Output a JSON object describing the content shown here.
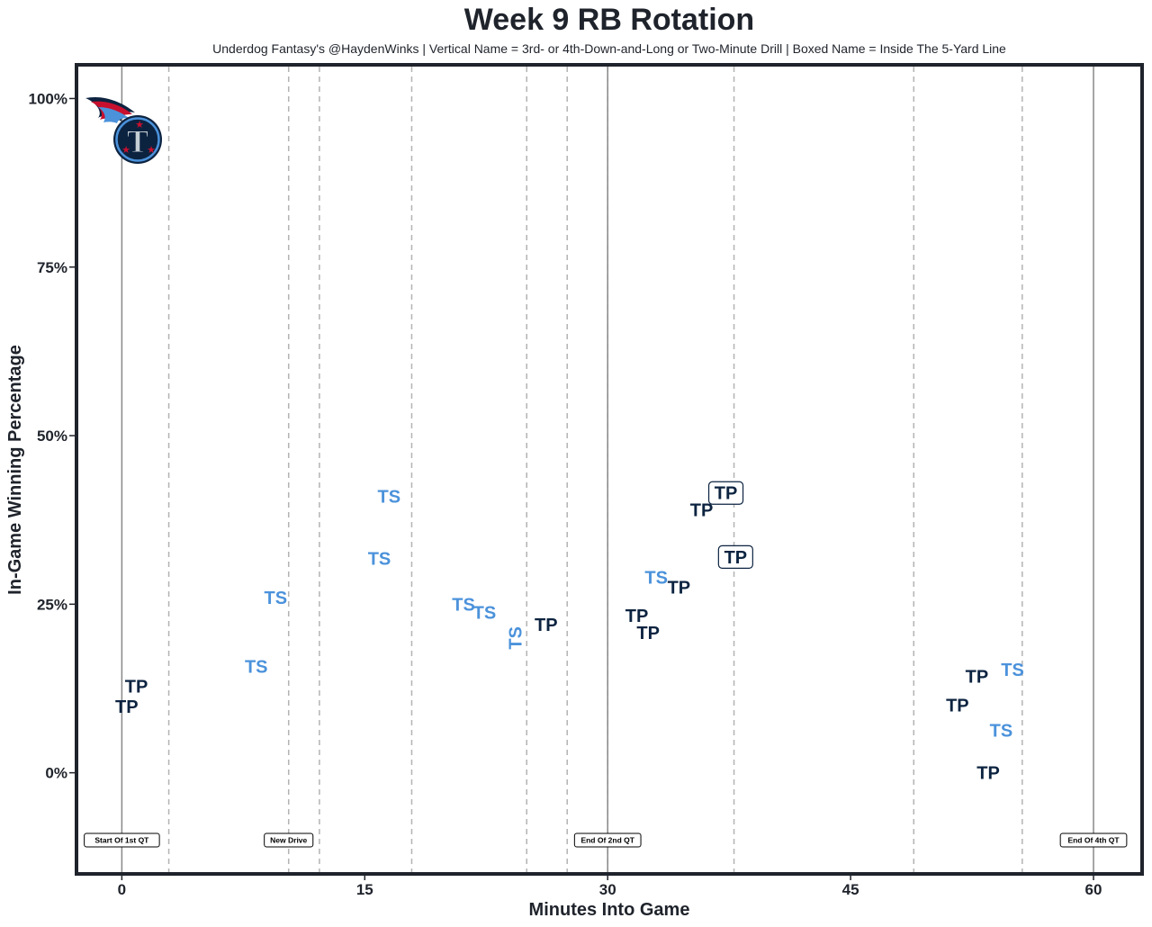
{
  "chart_data": {
    "type": "scatter",
    "title": "Week 9 RB Rotation",
    "subtitle": "Underdog Fantasy's @HaydenWinks | Vertical Name = 3rd- or 4th-Down-and-Long or Two-Minute Drill | Boxed Name = Inside The 5-Yard Line",
    "xlabel": "Minutes Into Game",
    "ylabel": "In-Game Winning Percentage",
    "xlim": [
      -2.8,
      63
    ],
    "ylim": [
      -15,
      105
    ],
    "x_ticks": [
      0,
      15,
      30,
      45,
      60
    ],
    "y_ticks": [
      {
        "value": 0,
        "label": "0%"
      },
      {
        "value": 25,
        "label": "25%"
      },
      {
        "value": 50,
        "label": "50%"
      },
      {
        "value": 75,
        "label": "75%"
      },
      {
        "value": 100,
        "label": "100%"
      }
    ],
    "grid": false,
    "solid_lines": [
      0,
      30,
      60
    ],
    "dashed_lines": [
      2.9,
      10.3,
      12.2,
      17.9,
      25.0,
      27.5,
      30.0,
      37.8,
      48.9,
      55.6
    ],
    "annotations": [
      {
        "x": 0,
        "label": "Start Of 1st QT"
      },
      {
        "x": 10.3,
        "label": "New Drive"
      },
      {
        "x": 30,
        "label": "End Of 2nd QT"
      },
      {
        "x": 60,
        "label": "End Of 4th QT"
      }
    ],
    "annotation_y": -10,
    "colors": {
      "TP": "#0c2340",
      "TS": "#4b92db",
      "frame": "#1f232b",
      "solid_line": "#888888",
      "dashed_line": "#b3b3b3"
    },
    "points": [
      {
        "label": "TP",
        "x": 0.3,
        "y": 9.8,
        "vertical": false,
        "boxed": false
      },
      {
        "label": "TP",
        "x": 0.9,
        "y": 12.8,
        "vertical": false,
        "boxed": false
      },
      {
        "label": "TS",
        "x": 8.3,
        "y": 15.8,
        "vertical": false,
        "boxed": false
      },
      {
        "label": "TS",
        "x": 9.5,
        "y": 26.0,
        "vertical": false,
        "boxed": false
      },
      {
        "label": "TS",
        "x": 15.9,
        "y": 31.8,
        "vertical": false,
        "boxed": false
      },
      {
        "label": "TS",
        "x": 16.5,
        "y": 41.0,
        "vertical": false,
        "boxed": false
      },
      {
        "label": "TS",
        "x": 21.1,
        "y": 25.0,
        "vertical": false,
        "boxed": false
      },
      {
        "label": "TS",
        "x": 22.4,
        "y": 23.8,
        "vertical": false,
        "boxed": false
      },
      {
        "label": "TS",
        "x": 24.3,
        "y": 20.0,
        "vertical": true,
        "boxed": false
      },
      {
        "label": "TP",
        "x": 26.2,
        "y": 22.0,
        "vertical": false,
        "boxed": false
      },
      {
        "label": "TP",
        "x": 31.8,
        "y": 23.3,
        "vertical": false,
        "boxed": false
      },
      {
        "label": "TP",
        "x": 32.5,
        "y": 20.8,
        "vertical": false,
        "boxed": false
      },
      {
        "label": "TS",
        "x": 33.0,
        "y": 29.0,
        "vertical": false,
        "boxed": false
      },
      {
        "label": "TP",
        "x": 34.4,
        "y": 27.5,
        "vertical": false,
        "boxed": false
      },
      {
        "label": "TP",
        "x": 35.8,
        "y": 39.0,
        "vertical": false,
        "boxed": false
      },
      {
        "label": "TP",
        "x": 37.3,
        "y": 41.5,
        "vertical": false,
        "boxed": true
      },
      {
        "label": "TP",
        "x": 37.9,
        "y": 32.0,
        "vertical": false,
        "boxed": true
      },
      {
        "label": "TP",
        "x": 51.6,
        "y": 10.0,
        "vertical": false,
        "boxed": false
      },
      {
        "label": "TP",
        "x": 52.8,
        "y": 14.3,
        "vertical": false,
        "boxed": false
      },
      {
        "label": "TP",
        "x": 53.5,
        "y": 0.0,
        "vertical": false,
        "boxed": false
      },
      {
        "label": "TS",
        "x": 54.3,
        "y": 6.3,
        "vertical": false,
        "boxed": false
      },
      {
        "label": "TS",
        "x": 55.0,
        "y": 15.3,
        "vertical": false,
        "boxed": false
      }
    ]
  },
  "logo": {
    "name": "titans-logo",
    "letter": "T"
  }
}
